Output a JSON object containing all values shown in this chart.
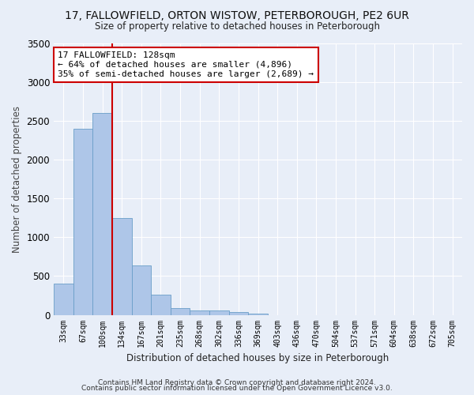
{
  "title": "17, FALLOWFIELD, ORTON WISTOW, PETERBOROUGH, PE2 6UR",
  "subtitle": "Size of property relative to detached houses in Peterborough",
  "xlabel": "Distribution of detached houses by size in Peterborough",
  "ylabel": "Number of detached properties",
  "footnote1": "Contains HM Land Registry data © Crown copyright and database right 2024.",
  "footnote2": "Contains public sector information licensed under the Open Government Licence v3.0.",
  "bin_labels": [
    "33sqm",
    "67sqm",
    "100sqm",
    "134sqm",
    "167sqm",
    "201sqm",
    "235sqm",
    "268sqm",
    "302sqm",
    "336sqm",
    "369sqm",
    "403sqm",
    "436sqm",
    "470sqm",
    "504sqm",
    "537sqm",
    "571sqm",
    "604sqm",
    "638sqm",
    "672sqm",
    "705sqm"
  ],
  "bar_values": [
    400,
    2400,
    2600,
    1250,
    640,
    260,
    90,
    60,
    60,
    40,
    20,
    0,
    0,
    0,
    0,
    0,
    0,
    0,
    0,
    0
  ],
  "bar_color": "#aec6e8",
  "bar_edge_color": "#6a9ec8",
  "background_color": "#e8eef8",
  "grid_color": "#ffffff",
  "vline_color": "#cc0000",
  "property_bin_index": 2,
  "annotation_text": "17 FALLOWFIELD: 128sqm\n← 64% of detached houses are smaller (4,896)\n35% of semi-detached houses are larger (2,689) →",
  "annotation_box_color": "#ffffff",
  "annotation_box_edge": "#cc0000",
  "ylim": [
    0,
    3500
  ],
  "yticks": [
    0,
    500,
    1000,
    1500,
    2000,
    2500,
    3000,
    3500
  ]
}
